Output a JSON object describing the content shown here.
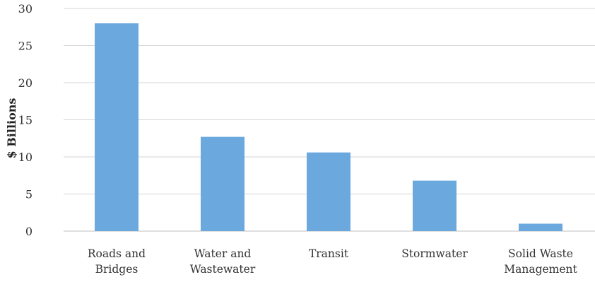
{
  "chart_data": {
    "type": "bar",
    "title": "",
    "xlabel": "",
    "ylabel": "$ Billions",
    "ylim": [
      0,
      30
    ],
    "yticks": [
      0,
      5,
      10,
      15,
      20,
      25,
      30
    ],
    "grid": true,
    "legend": "none",
    "categories": [
      [
        "Roads and",
        "Bridges"
      ],
      [
        "Water and",
        "Wastewater"
      ],
      [
        "Transit"
      ],
      [
        "Stormwater"
      ],
      [
        "Solid Waste",
        "Management"
      ]
    ],
    "values": [
      28,
      12.7,
      10.6,
      6.8,
      1.0
    ],
    "bar_color": "#6aa8de"
  }
}
